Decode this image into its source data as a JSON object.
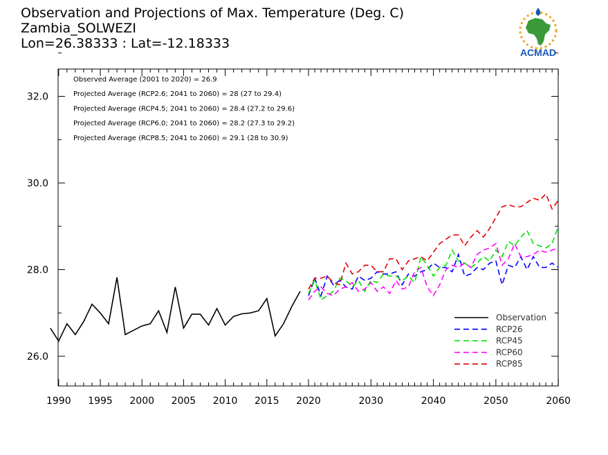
{
  "header": {
    "title_line1": "Observation and Projections of Max. Temperature (Deg. C)",
    "title_line2": "Zambia_SOLWEZI",
    "title_line3": "Lon=26.38333 : Lat=-12.18333"
  },
  "logo": {
    "text": "ACMAD"
  },
  "colors": {
    "observation": "#000000",
    "rcp26": "#0000ff",
    "rcp45": "#00e000",
    "rcp60": "#ff00ff",
    "rcp85": "#e00000",
    "logo_blue": "#1a56b8",
    "logo_orange": "#f5a623",
    "logo_green": "#3a9a3a"
  },
  "chart_data": {
    "type": "line",
    "title": "Observation and Projections of Max. Temperature (Deg. C)",
    "xlim": [
      1989,
      2060
    ],
    "ylim": [
      25.3,
      33.4
    ],
    "x_ticks": [
      1990,
      1995,
      2000,
      2005,
      2010,
      2015,
      2020,
      2030,
      2040,
      2050,
      2060
    ],
    "y_ticks": [
      26.0,
      28.0,
      30.0,
      32.0
    ],
    "y_tick_labels": [
      "26.0",
      "28.0",
      "30.0",
      "32.0"
    ],
    "annotations": [
      "Observed Average (2001 to 2020) = 26.9",
      "Projected Average (RCP2.6; 2041 to 2060) = 28 (27 to 29.4)",
      "Projected Average (RCP4.5; 2041 to 2060) = 28.4 (27.2 to 29.6)",
      "Projected Average (RCP6.0; 2041 to 2060) = 28.2 (27.3 to 29.2)",
      "Projected Average (RCP8.5; 2041 to 2060) = 29.1 (28 to 30.9)"
    ],
    "legend_position": "bottom-right",
    "series": [
      {
        "name": "Observation",
        "style": "solid",
        "x": [
          1989,
          1990,
          1991,
          1992,
          1993,
          1994,
          1995,
          1996,
          1997,
          1998,
          1999,
          2000,
          2001,
          2002,
          2003,
          2004,
          2005,
          2006,
          2007,
          2008,
          2009,
          2010,
          2011,
          2012,
          2013,
          2014,
          2015,
          2016,
          2017,
          2018,
          2019
        ],
        "y": [
          26.65,
          26.35,
          26.75,
          26.5,
          26.8,
          27.2,
          27.0,
          26.75,
          27.82,
          26.5,
          26.6,
          26.7,
          26.75,
          27.05,
          26.55,
          27.6,
          26.65,
          26.97,
          26.97,
          26.72,
          27.1,
          26.72,
          26.92,
          26.98,
          27.0,
          27.05,
          27.33,
          26.47,
          26.75,
          27.15,
          27.5
        ]
      },
      {
        "name": "RCP26",
        "style": "dashed",
        "x": [
          2020,
          2021,
          2022,
          2023,
          2024,
          2025,
          2026,
          2027,
          2028,
          2029,
          2030,
          2031,
          2032,
          2033,
          2034,
          2035,
          2036,
          2037,
          2038,
          2039,
          2040,
          2041,
          2042,
          2043,
          2044,
          2045,
          2046,
          2047,
          2048,
          2049,
          2050,
          2051,
          2052,
          2053,
          2054,
          2055,
          2056,
          2057,
          2058,
          2059,
          2060
        ],
        "y": [
          27.4,
          27.8,
          27.4,
          27.85,
          27.65,
          27.75,
          27.6,
          27.55,
          27.85,
          27.75,
          27.8,
          27.95,
          27.9,
          27.9,
          27.95,
          27.65,
          27.9,
          27.85,
          27.95,
          28.0,
          28.15,
          28.05,
          28.05,
          27.95,
          28.35,
          27.85,
          27.9,
          28.05,
          28.0,
          28.15,
          28.2,
          27.65,
          28.1,
          28.05,
          28.3,
          28.0,
          28.3,
          28.05,
          28.05,
          28.15,
          28.05
        ]
      },
      {
        "name": "RCP45",
        "style": "dashed",
        "x": [
          2020,
          2021,
          2022,
          2023,
          2024,
          2025,
          2026,
          2027,
          2028,
          2029,
          2030,
          2031,
          2032,
          2033,
          2034,
          2035,
          2036,
          2037,
          2038,
          2039,
          2040,
          2041,
          2042,
          2043,
          2044,
          2045,
          2046,
          2047,
          2048,
          2049,
          2050,
          2051,
          2052,
          2053,
          2054,
          2055,
          2056,
          2057,
          2058,
          2059,
          2060
        ],
        "y": [
          27.45,
          27.75,
          27.3,
          27.4,
          27.5,
          27.8,
          27.75,
          27.6,
          27.75,
          27.5,
          27.75,
          27.7,
          27.9,
          27.85,
          27.85,
          27.75,
          27.85,
          27.7,
          28.3,
          28.1,
          27.85,
          28.05,
          28.1,
          28.45,
          28.2,
          28.15,
          28.05,
          28.15,
          28.3,
          28.2,
          28.45,
          28.3,
          28.65,
          28.55,
          28.75,
          28.9,
          28.6,
          28.55,
          28.5,
          28.6,
          29.0
        ]
      },
      {
        "name": "RCP60",
        "style": "dashed",
        "x": [
          2020,
          2021,
          2022,
          2023,
          2024,
          2025,
          2026,
          2027,
          2028,
          2029,
          2030,
          2031,
          2032,
          2033,
          2034,
          2035,
          2036,
          2037,
          2038,
          2039,
          2040,
          2041,
          2042,
          2043,
          2044,
          2045,
          2046,
          2047,
          2048,
          2049,
          2050,
          2051,
          2052,
          2053,
          2054,
          2055,
          2056,
          2057,
          2058,
          2059,
          2060
        ],
        "y": [
          27.3,
          27.5,
          27.6,
          27.45,
          27.4,
          27.55,
          27.6,
          27.7,
          27.5,
          27.55,
          27.7,
          27.5,
          27.6,
          27.45,
          27.75,
          27.55,
          27.6,
          27.95,
          28.05,
          27.6,
          27.4,
          27.65,
          28.0,
          28.1,
          28.05,
          28.15,
          28.05,
          28.35,
          28.45,
          28.5,
          28.6,
          28.1,
          28.25,
          28.6,
          28.3,
          28.3,
          28.35,
          28.45,
          28.4,
          28.45,
          28.5
        ]
      },
      {
        "name": "RCP85",
        "style": "dashed",
        "x": [
          2020,
          2021,
          2022,
          2023,
          2024,
          2025,
          2026,
          2027,
          2028,
          2029,
          2030,
          2031,
          2032,
          2033,
          2034,
          2035,
          2036,
          2037,
          2038,
          2039,
          2040,
          2041,
          2042,
          2043,
          2044,
          2045,
          2046,
          2047,
          2048,
          2049,
          2050,
          2051,
          2052,
          2053,
          2054,
          2055,
          2056,
          2057,
          2058,
          2059,
          2060
        ],
        "y": [
          27.55,
          27.8,
          27.8,
          27.85,
          27.7,
          27.65,
          28.15,
          27.9,
          27.95,
          28.1,
          28.1,
          27.95,
          27.95,
          28.25,
          28.25,
          28.0,
          28.2,
          28.25,
          28.3,
          28.2,
          28.4,
          28.6,
          28.7,
          28.8,
          28.8,
          28.55,
          28.75,
          28.9,
          28.75,
          28.95,
          29.2,
          29.45,
          29.5,
          29.45,
          29.45,
          29.55,
          29.65,
          29.6,
          29.75,
          29.4,
          29.6
        ]
      }
    ]
  }
}
